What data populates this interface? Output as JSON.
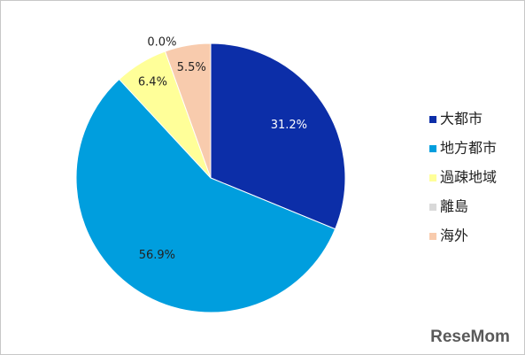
{
  "chart_data": {
    "type": "pie",
    "categories": [
      "大都市",
      "地方都市",
      "過疎地域",
      "離島",
      "海外"
    ],
    "values": [
      31.2,
      56.9,
      6.4,
      0.0,
      5.5
    ],
    "value_labels": [
      "31.2%",
      "56.9%",
      "6.4%",
      "0.0%",
      "5.5%"
    ],
    "colors": [
      "#0c2ea8",
      "#009ede",
      "#ffff99",
      "#d9d9d9",
      "#f8cbad"
    ],
    "legend": "right"
  },
  "watermark": "ReseMom"
}
